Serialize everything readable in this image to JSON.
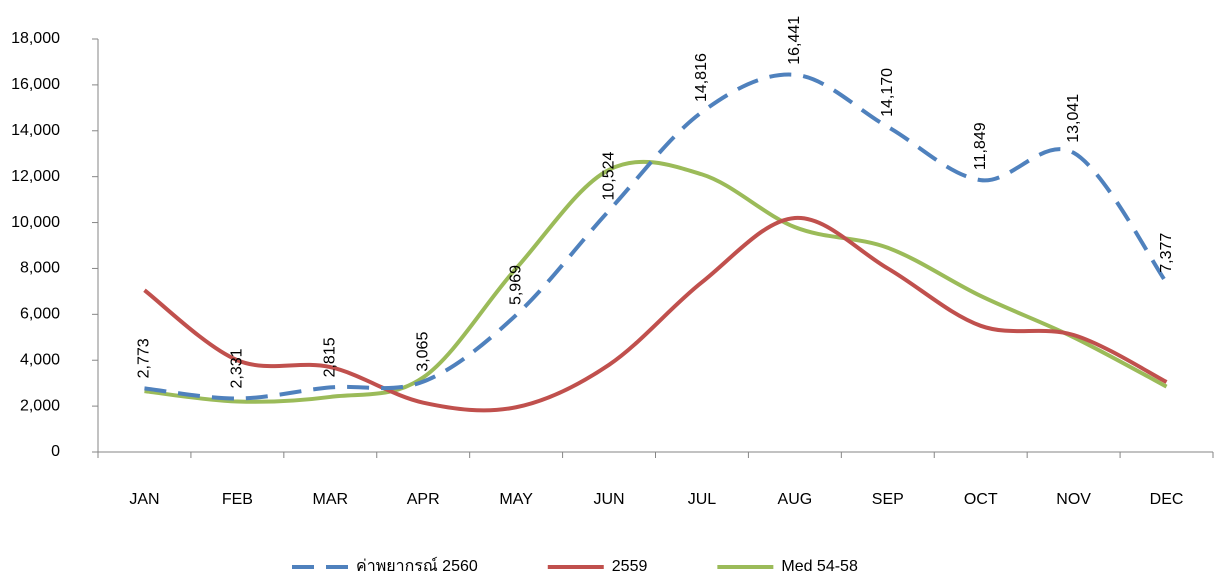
{
  "chart_data": {
    "type": "line",
    "categories": [
      "JAN",
      "FEB",
      "MAR",
      "APR",
      "MAY",
      "JUN",
      "JUL",
      "AUG",
      "SEP",
      "OCT",
      "NOV",
      "DEC"
    ],
    "series": [
      {
        "name": "ค่าพยากรณ์ 2560",
        "color": "#4f81bd",
        "dashed": true,
        "data_labels": true,
        "values": [
          2773,
          2331,
          2815,
          3065,
          5969,
          10524,
          14816,
          16441,
          14170,
          11849,
          13041,
          7377
        ],
        "value_labels": [
          "2,773",
          "2,331",
          "2,815",
          "3,065",
          "5,969",
          "10,524",
          "14,816",
          "16,441",
          "14,170",
          "11,849",
          "13,041",
          "7,377"
        ]
      },
      {
        "name": "2559",
        "color": "#c0504d",
        "dashed": false,
        "data_labels": false,
        "values": [
          7050,
          4000,
          3700,
          2150,
          1950,
          3800,
          7400,
          10200,
          8000,
          5500,
          5100,
          3050
        ]
      },
      {
        "name": "Med 54-58",
        "color": "#9bbb59",
        "dashed": false,
        "data_labels": false,
        "values": [
          2650,
          2200,
          2400,
          3250,
          8000,
          12300,
          12100,
          9800,
          8900,
          6800,
          5000,
          2850
        ]
      }
    ],
    "ylim": [
      0,
      18000
    ],
    "yticks": [
      0,
      {
        "value": 2000,
        "label": "2,000"
      },
      {
        "value": 4000,
        "label": "4,000"
      },
      {
        "value": 6000,
        "label": "6,000"
      },
      {
        "value": 8000,
        "label": "8,000"
      },
      {
        "value": 10000,
        "label": "10,000"
      },
      {
        "value": 12000,
        "label": "12,000"
      },
      {
        "value": 14000,
        "label": "14,000"
      },
      {
        "value": 16000,
        "label": "16,000"
      },
      {
        "value": 18000,
        "label": "18,000"
      }
    ],
    "grid": false,
    "smooth": true,
    "legend": "bottom"
  }
}
